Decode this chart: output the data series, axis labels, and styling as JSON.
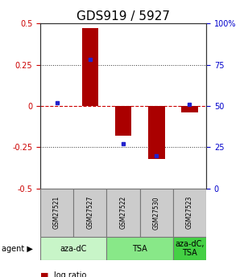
{
  "title": "GDS919 / 5927",
  "samples": [
    "GSM27521",
    "GSM27527",
    "GSM27522",
    "GSM27530",
    "GSM27523"
  ],
  "log_ratio": [
    0.0,
    0.47,
    -0.18,
    -0.32,
    -0.04
  ],
  "percentile": [
    52,
    78,
    27,
    20,
    51
  ],
  "agents": [
    {
      "label": "aza-dC",
      "span": [
        0,
        2
      ],
      "color": "#c8f5c8"
    },
    {
      "label": "TSA",
      "span": [
        2,
        4
      ],
      "color": "#88e888"
    },
    {
      "label": "aza-dC,\nTSA",
      "span": [
        4,
        5
      ],
      "color": "#44d044"
    }
  ],
  "ylim": [
    -0.5,
    0.5
  ],
  "right_ylim": [
    0,
    100
  ],
  "yticks_left": [
    -0.5,
    -0.25,
    0.0,
    0.25,
    0.5
  ],
  "yticks_right": [
    0,
    25,
    50,
    75,
    100
  ],
  "ytick_labels_left": [
    "-0.5",
    "-0.25",
    "0",
    "0.25",
    "0.5"
  ],
  "ytick_labels_right": [
    "0",
    "25",
    "50",
    "75",
    "100%"
  ],
  "bar_color": "#aa0000",
  "dot_color": "#2222cc",
  "hline_color": "#cc0000",
  "dot_gridline_color": "#555555",
  "title_fontsize": 11,
  "tick_fontsize": 7,
  "sample_fontsize": 5.5,
  "agent_fontsize": 7,
  "legend_fontsize": 7
}
